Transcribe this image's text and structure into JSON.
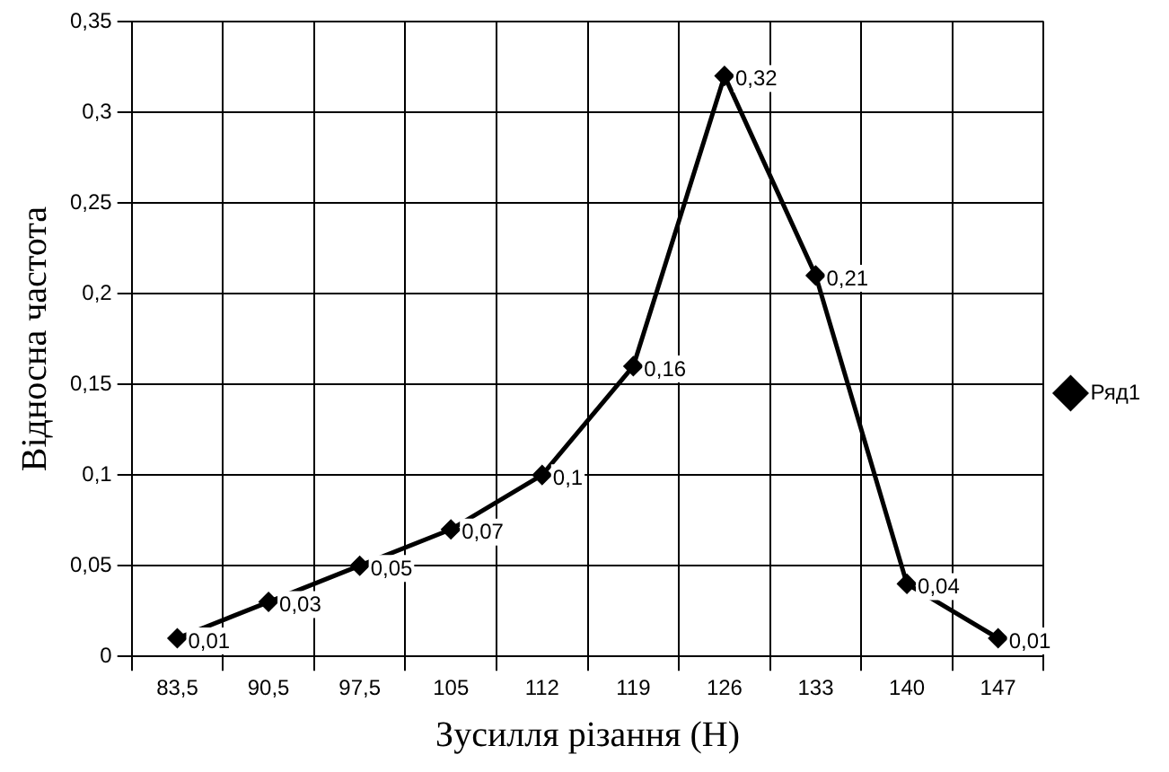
{
  "chart_data": {
    "type": "line",
    "xlabel": "Зусилля різання (Н)",
    "ylabel": "Відносна частота",
    "categories": [
      "83,5",
      "90,5",
      "97,5",
      "105",
      "112",
      "119",
      "126",
      "133",
      "140",
      "147"
    ],
    "series": [
      {
        "name": "Ряд1",
        "color": "#000000",
        "values": [
          0.01,
          0.03,
          0.05,
          0.07,
          0.1,
          0.16,
          0.32,
          0.21,
          0.04,
          0.01
        ],
        "value_labels": [
          "0,01",
          "0,03",
          "0,05",
          "0,07",
          "0,1",
          "0,16",
          "0,32",
          "0,21",
          "0,04",
          "0,01"
        ]
      }
    ],
    "ylim": [
      0,
      0.35
    ],
    "yticks": [
      {
        "value": 0,
        "label": "0"
      },
      {
        "value": 0.05,
        "label": "0,05"
      },
      {
        "value": 0.1,
        "label": "0,1"
      },
      {
        "value": 0.15,
        "label": "0,15"
      },
      {
        "value": 0.2,
        "label": "0,2"
      },
      {
        "value": 0.25,
        "label": "0,25"
      },
      {
        "value": 0.3,
        "label": "0,3"
      },
      {
        "value": 0.35,
        "label": "0,35"
      }
    ],
    "grid": true,
    "legend": "right",
    "marker": "diamond",
    "line_style": "solid"
  }
}
